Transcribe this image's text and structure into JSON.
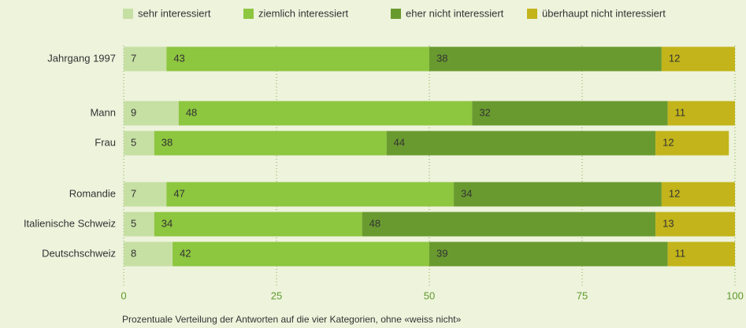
{
  "chart_data": {
    "type": "stacked-bar-horizontal",
    "categories": [
      "Jahrgang 1997",
      "Mann",
      "Frau",
      "Romandie",
      "Italienische Schweiz",
      "Deutschschweiz"
    ],
    "series": [
      {
        "name": "sehr interessiert",
        "color": "#c6dfa3",
        "values": [
          7,
          9,
          5,
          7,
          5,
          8
        ]
      },
      {
        "name": "ziemlich interessiert",
        "color": "#8dc63f",
        "values": [
          43,
          48,
          38,
          47,
          34,
          42
        ]
      },
      {
        "name": "eher nicht interessiert",
        "color": "#699a2f",
        "values": [
          38,
          32,
          44,
          34,
          48,
          39
        ]
      },
      {
        "name": "überhaupt nicht interessiert",
        "color": "#c2b41a",
        "values": [
          12,
          11,
          12,
          12,
          13,
          11
        ]
      }
    ],
    "xlim": [
      0,
      100
    ],
    "xticks": [
      0,
      25,
      50,
      75,
      100
    ],
    "grid": true,
    "legend": "top",
    "footnote": "Prozentuale Verteilung der Antworten auf die vier Kategorien, ohne «weiss nicht»"
  }
}
